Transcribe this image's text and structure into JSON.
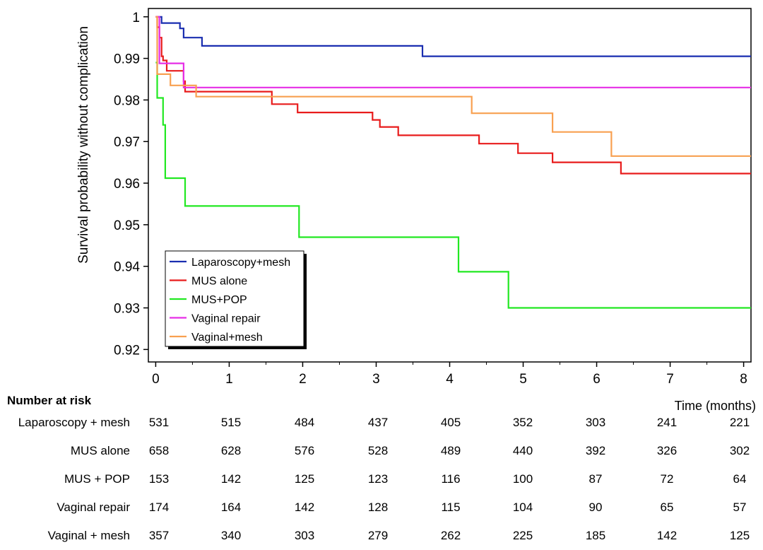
{
  "chart_data": {
    "type": "line",
    "step": true,
    "title": "",
    "xlabel": "Time (months)",
    "ylabel": "Survival probability without complication",
    "xlim": [
      -0.1,
      8.1
    ],
    "ylim": [
      0.917,
      1.002
    ],
    "xticks": [
      0,
      1,
      2,
      3,
      4,
      5,
      6,
      7,
      8
    ],
    "yticks": [
      0.92,
      0.93,
      0.94,
      0.95,
      0.96,
      0.97,
      0.98,
      0.99,
      1
    ],
    "ytick_labels": [
      "0.92",
      "0.93",
      "0.94",
      "0.95",
      "0.96",
      "0.97",
      "0.98",
      "0.99",
      "1"
    ],
    "grid": false,
    "legend_position": "bottom-left",
    "series": [
      {
        "name": "Laparoscopy+mesh",
        "color": "#1a2eb0",
        "points": [
          [
            0,
            1.0
          ],
          [
            0.08,
            0.9985
          ],
          [
            0.33,
            0.9972
          ],
          [
            0.38,
            0.995
          ],
          [
            0.63,
            0.993
          ],
          [
            3.63,
            0.9905
          ],
          [
            8.1,
            0.9905
          ]
        ]
      },
      {
        "name": "MUS alone",
        "color": "#e81c1c",
        "points": [
          [
            0,
            1.0
          ],
          [
            0.02,
            0.9975
          ],
          [
            0.05,
            0.995
          ],
          [
            0.08,
            0.9905
          ],
          [
            0.1,
            0.9895
          ],
          [
            0.15,
            0.987
          ],
          [
            0.38,
            0.9845
          ],
          [
            0.4,
            0.982
          ],
          [
            1.58,
            0.979
          ],
          [
            1.93,
            0.977
          ],
          [
            2.95,
            0.9752
          ],
          [
            3.05,
            0.9735
          ],
          [
            3.3,
            0.9715
          ],
          [
            4.4,
            0.9695
          ],
          [
            4.93,
            0.9672
          ],
          [
            5.4,
            0.965
          ],
          [
            6.33,
            0.9623
          ],
          [
            8.1,
            0.9623
          ]
        ]
      },
      {
        "name": "MUS+POP",
        "color": "#22e822",
        "points": [
          [
            0,
            0.989
          ],
          [
            0.02,
            0.9805
          ],
          [
            0.1,
            0.974
          ],
          [
            0.13,
            0.9612
          ],
          [
            0.4,
            0.9545
          ],
          [
            1.95,
            0.947
          ],
          [
            4.12,
            0.9387
          ],
          [
            4.8,
            0.93
          ],
          [
            8.1,
            0.93
          ]
        ]
      },
      {
        "name": "Vaginal repair",
        "color": "#e62ee6",
        "points": [
          [
            0,
            1.0
          ],
          [
            0.05,
            0.9888
          ],
          [
            0.38,
            0.983
          ],
          [
            8.1,
            0.983
          ]
        ]
      },
      {
        "name": "Vaginal+mesh",
        "color": "#f8a050",
        "points": [
          [
            0,
            1.0
          ],
          [
            0.02,
            0.9862
          ],
          [
            0.2,
            0.9835
          ],
          [
            0.55,
            0.9808
          ],
          [
            4.3,
            0.9768
          ],
          [
            5.4,
            0.9723
          ],
          [
            6.2,
            0.9665
          ],
          [
            8.1,
            0.9665
          ]
        ]
      }
    ]
  },
  "risk_table": {
    "title": "Number at risk",
    "times": [
      0,
      1,
      2,
      3,
      4,
      5,
      6,
      7,
      8
    ],
    "rows": [
      {
        "label": "Laparoscopy + mesh",
        "values": [
          "531",
          "515",
          "484",
          "437",
          "405",
          "352",
          "303",
          "241",
          "221"
        ]
      },
      {
        "label": "MUS alone",
        "values": [
          "658",
          "628",
          "576",
          "528",
          "489",
          "440",
          "392",
          "326",
          "302"
        ]
      },
      {
        "label": "MUS + POP",
        "values": [
          "153",
          "142",
          "125",
          "123",
          "116",
          "100",
          "87",
          "72",
          "64"
        ]
      },
      {
        "label": "Vaginal repair",
        "values": [
          "174",
          "164",
          "142",
          "128",
          "115",
          "104",
          "90",
          "65",
          "57"
        ]
      },
      {
        "label": "Vaginal + mesh",
        "values": [
          "357",
          "340",
          "303",
          "279",
          "262",
          "225",
          "185",
          "142",
          "125"
        ]
      }
    ]
  }
}
